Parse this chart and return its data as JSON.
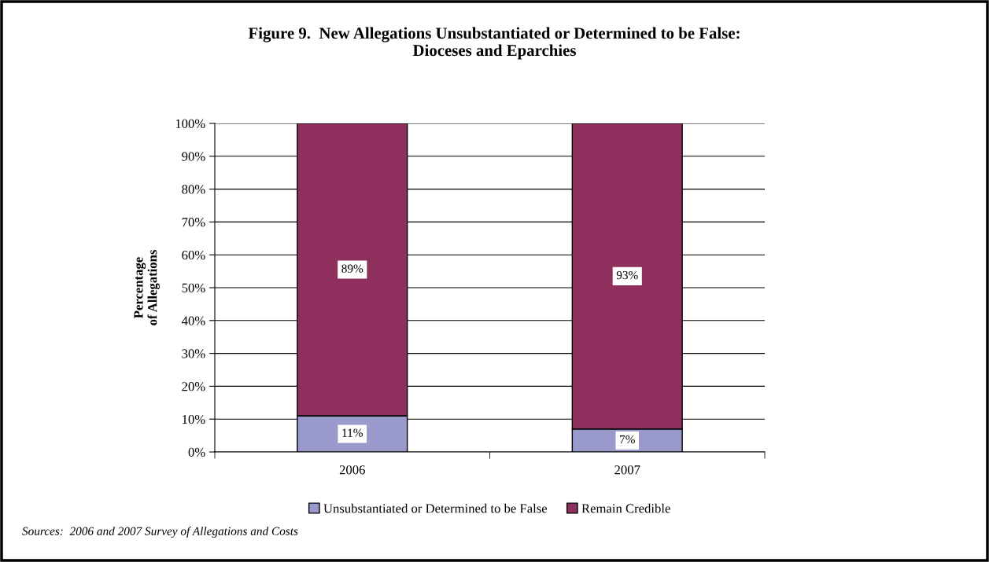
{
  "chart_data": {
    "type": "bar",
    "stacked": true,
    "title": "Figure 9.  New Allegations Unsubstantiated or Determined to be False:\nDioceses and Eparchies",
    "ylabel": "Percentage\nof Allegations",
    "categories": [
      "2006",
      "2007"
    ],
    "series": [
      {
        "name": "Unsubstantiated or Determined to be False",
        "color": "#9999cc",
        "values": [
          11,
          7
        ],
        "value_labels": [
          "11%",
          "7%"
        ]
      },
      {
        "name": "Remain Credible",
        "color": "#8f2f5e",
        "values": [
          89,
          93
        ],
        "value_labels": [
          "89%",
          "93%"
        ]
      }
    ],
    "ylim": [
      0,
      100
    ],
    "yticks": [
      {
        "value": 0,
        "label": "0%"
      },
      {
        "value": 10,
        "label": "10%"
      },
      {
        "value": 20,
        "label": "20%"
      },
      {
        "value": 30,
        "label": "30%"
      },
      {
        "value": 40,
        "label": "40%"
      },
      {
        "value": 50,
        "label": "50%"
      },
      {
        "value": 60,
        "label": "60%"
      },
      {
        "value": 70,
        "label": "70%"
      },
      {
        "value": 80,
        "label": "80%"
      },
      {
        "value": 90,
        "label": "90%"
      },
      {
        "value": 100,
        "label": "100%"
      }
    ],
    "grid": "y",
    "legend": "bottom",
    "annotations": [
      "Sources:  2006 and 2007 Survey of Allegations and Costs"
    ]
  }
}
